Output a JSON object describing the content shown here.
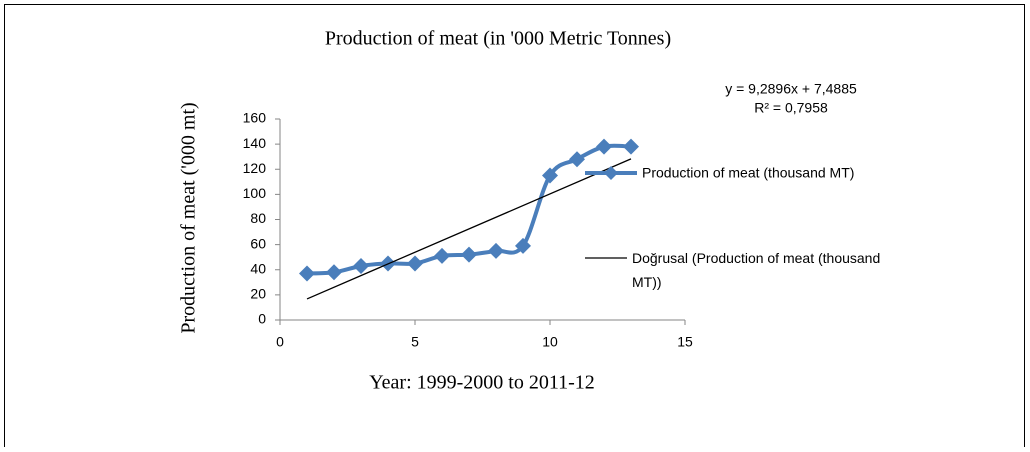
{
  "chart_data": {
    "type": "line",
    "title": "Production of meat (in '000 Metric Tonnes)",
    "y_label": "Production of meat ('000 mt)",
    "x_label": "Year: 1999-2000 to 2011-12",
    "annotations": [
      "y = 9,2896x + 7,4885",
      "R² = 0,7958"
    ],
    "series": [
      {
        "name": "Production of meat (thousand MT)",
        "color": "#4a7ebb",
        "marker": "diamond",
        "smooth": true,
        "x": [
          1,
          2,
          3,
          4,
          5,
          6,
          7,
          8,
          9,
          10,
          11,
          12,
          13
        ],
        "values": [
          37,
          38,
          43,
          45,
          45,
          51,
          52,
          55,
          59,
          115,
          128,
          138,
          138
        ]
      },
      {
        "name": "Doğrusal (Production of meat (thousand MT))",
        "color": "#000000",
        "marker": "none",
        "smooth": false,
        "x": [
          1,
          13
        ],
        "values": [
          16.78,
          128.25
        ]
      }
    ],
    "xlim": [
      0,
      15
    ],
    "xticks": [
      0,
      5,
      10,
      15
    ],
    "ylim": [
      0,
      160
    ],
    "yticks": [
      0,
      20,
      40,
      60,
      80,
      100,
      120,
      140,
      160
    ],
    "grid": false,
    "legend": "right"
  }
}
